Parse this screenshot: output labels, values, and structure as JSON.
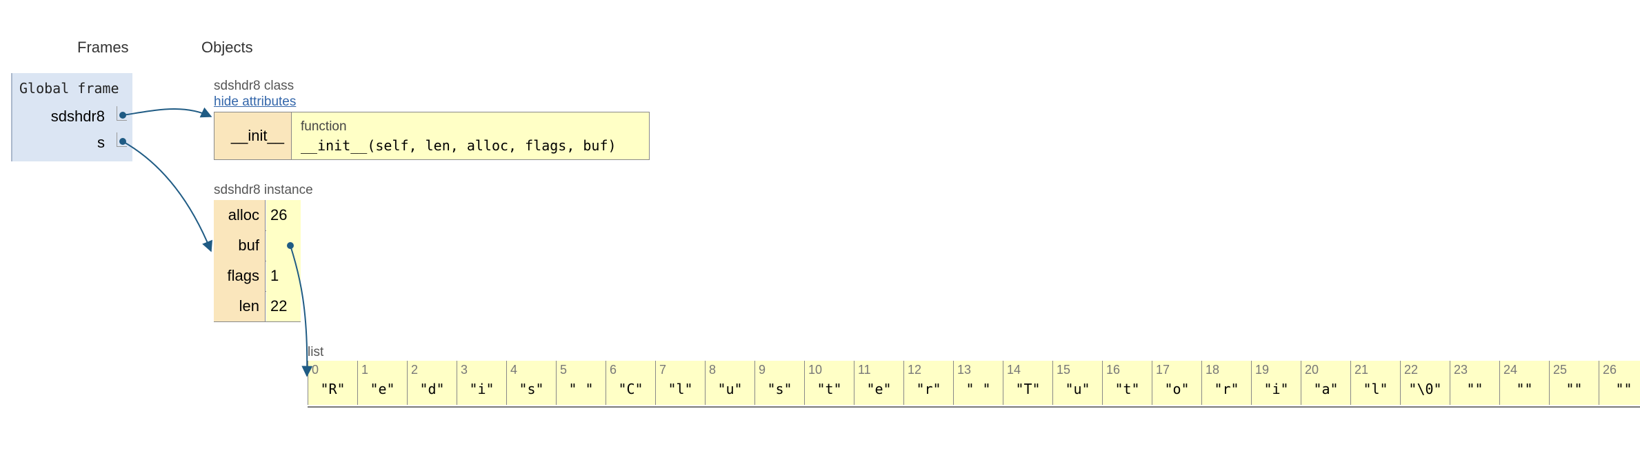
{
  "headers": {
    "frames": "Frames",
    "objects": "Objects"
  },
  "global_frame": {
    "title": "Global frame",
    "vars": [
      {
        "name": "sdshdr8"
      },
      {
        "name": "s"
      }
    ]
  },
  "class_obj": {
    "label": "sdshdr8 class",
    "hide_link": "hide attributes",
    "attr_name": "__init__",
    "attr_type": "function",
    "signature": "__init__(self, len, alloc, flags, buf)"
  },
  "instance": {
    "label": "sdshdr8 instance",
    "rows": [
      {
        "key": "alloc",
        "value": "26"
      },
      {
        "key": "buf",
        "value": ""
      },
      {
        "key": "flags",
        "value": "1"
      },
      {
        "key": "len",
        "value": "22"
      }
    ]
  },
  "list_obj": {
    "label": "list",
    "items": [
      "\"R\"",
      "\"e\"",
      "\"d\"",
      "\"i\"",
      "\"s\"",
      "\" \"",
      "\"C\"",
      "\"l\"",
      "\"u\"",
      "\"s\"",
      "\"t\"",
      "\"e\"",
      "\"r\"",
      "\" \"",
      "\"T\"",
      "\"u\"",
      "\"t\"",
      "\"o\"",
      "\"r\"",
      "\"i\"",
      "\"a\"",
      "\"l\"",
      "\"\\0\"",
      "\"\"",
      "\"\"",
      "\"\"",
      "\"\""
    ]
  },
  "colors": {
    "arrow": "#1f5b84",
    "frame_bg": "#dbe5f3",
    "object_bg": "#ffffc6",
    "key_bg": "#fae6bc"
  }
}
